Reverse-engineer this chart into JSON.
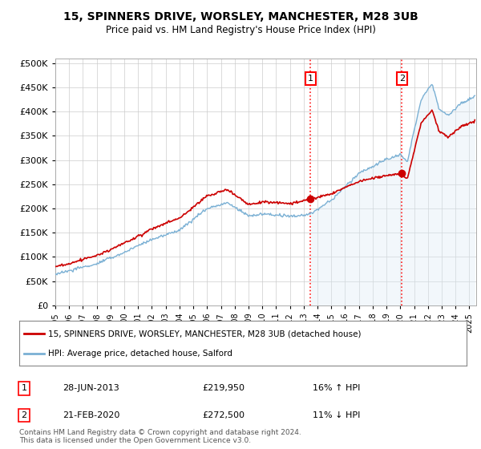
{
  "title": "15, SPINNERS DRIVE, WORSLEY, MANCHESTER, M28 3UB",
  "subtitle": "Price paid vs. HM Land Registry's House Price Index (HPI)",
  "yticks": [
    0,
    50000,
    100000,
    150000,
    200000,
    250000,
    300000,
    350000,
    400000,
    450000,
    500000
  ],
  "xlim_start": 1995.0,
  "xlim_end": 2025.5,
  "ylim": [
    0,
    510000
  ],
  "sale_color": "#cc0000",
  "hpi_color": "#7ab0d4",
  "hpi_fill_color": "#daeaf5",
  "marker1_date": 2013.49,
  "marker2_date": 2020.12,
  "marker1_price": 219950,
  "marker2_price": 272500,
  "legend_sale_label": "15, SPINNERS DRIVE, WORSLEY, MANCHESTER, M28 3UB (detached house)",
  "legend_hpi_label": "HPI: Average price, detached house, Salford",
  "note1_date": "28-JUN-2013",
  "note1_price": "£219,950",
  "note1_hpi": "16% ↑ HPI",
  "note2_date": "21-FEB-2020",
  "note2_price": "£272,500",
  "note2_hpi": "11% ↓ HPI",
  "footnote": "Contains HM Land Registry data © Crown copyright and database right 2024.\nThis data is licensed under the Open Government Licence v3.0.",
  "background_color": "#ffffff",
  "grid_color": "#cccccc"
}
